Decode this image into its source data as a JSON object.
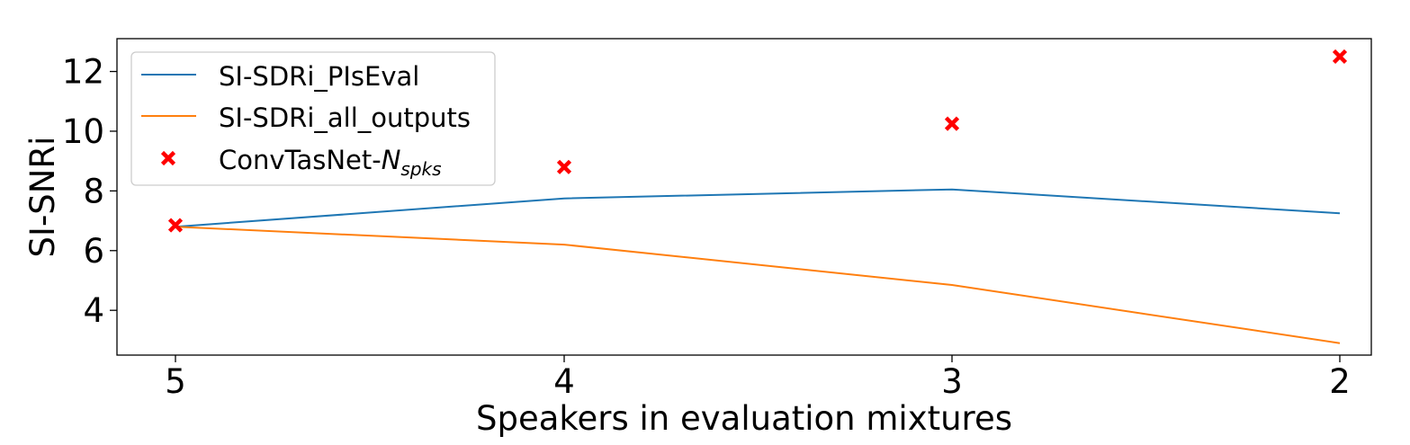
{
  "chart_data": {
    "type": "line",
    "title": "",
    "xlabel": "Speakers in evaluation mixtures",
    "ylabel": "SI-SNRi",
    "categories": [
      "5",
      "4",
      "3",
      "2"
    ],
    "ylim": [
      2.5,
      13.1
    ],
    "yticks": [
      4,
      6,
      8,
      10,
      12
    ],
    "grid": false,
    "legend_position": "top-left",
    "series": [
      {
        "name": "SI-SDRi_PIsEval",
        "kind": "line",
        "color": "#1f77b4",
        "values": [
          6.8,
          7.75,
          8.05,
          7.25
        ]
      },
      {
        "name": "SI-SDRi_all_outputs",
        "kind": "line",
        "color": "#ff7f0e",
        "values": [
          6.8,
          6.2,
          4.85,
          2.9
        ]
      },
      {
        "name": "ConvTasNet-",
        "name_subscript": "spks",
        "name_italic": "N",
        "kind": "marker",
        "marker": "x",
        "color": "#ff0000",
        "values": [
          6.85,
          8.8,
          10.25,
          12.5
        ]
      }
    ]
  }
}
